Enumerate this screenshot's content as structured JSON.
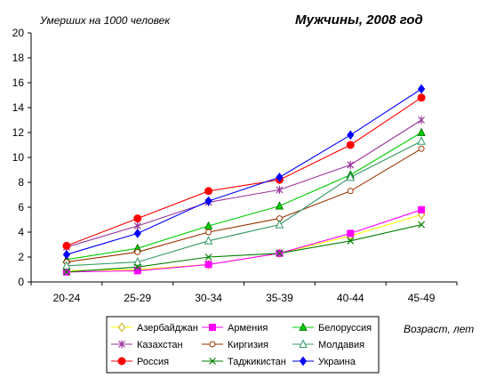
{
  "chart_data": {
    "type": "line",
    "title": "Мужчины, 2008 год",
    "ylabel": "Умерших на 1000 человек",
    "xlabel": "Возраст, лет",
    "ylim": [
      0,
      20
    ],
    "yticks": [
      0,
      2,
      4,
      6,
      8,
      10,
      12,
      14,
      16,
      18,
      20
    ],
    "categories": [
      "20-24",
      "25-29",
      "30-34",
      "35-39",
      "40-44",
      "45-49"
    ],
    "grid": false,
    "legend_position": "bottom",
    "series": [
      {
        "name": "Азербайджан",
        "color": "#ffff00",
        "marker": "diamond-open",
        "values": [
          0.9,
          1.0,
          1.4,
          2.3,
          3.7,
          5.4
        ]
      },
      {
        "name": "Армения",
        "color": "#ff00ff",
        "marker": "square",
        "values": [
          0.8,
          0.9,
          1.4,
          2.3,
          3.9,
          5.8
        ]
      },
      {
        "name": "Белоруссия",
        "color": "#00cc00",
        "marker": "triangle",
        "values": [
          1.8,
          2.7,
          4.5,
          6.1,
          8.6,
          12.0
        ]
      },
      {
        "name": "Казахстан",
        "color": "#993399",
        "marker": "star",
        "values": [
          2.8,
          4.5,
          6.4,
          7.4,
          9.4,
          13.0
        ]
      },
      {
        "name": "Киргизия",
        "color": "#993300",
        "marker": "circle-open",
        "values": [
          1.6,
          2.4,
          4.0,
          5.1,
          7.3,
          10.7
        ]
      },
      {
        "name": "Молдавия",
        "color": "#339966",
        "marker": "triangle-open",
        "values": [
          1.3,
          1.6,
          3.3,
          4.6,
          8.4,
          11.3
        ]
      },
      {
        "name": "Россия",
        "color": "#ff0000",
        "marker": "circle",
        "values": [
          2.9,
          5.1,
          7.3,
          8.2,
          11.0,
          14.8
        ]
      },
      {
        "name": "Таджикистан",
        "color": "#008000",
        "marker": "x",
        "values": [
          0.8,
          1.2,
          2.0,
          2.3,
          3.3,
          4.6
        ]
      },
      {
        "name": "Украина",
        "color": "#0000ff",
        "marker": "diamond",
        "values": [
          2.2,
          3.9,
          6.5,
          8.4,
          11.8,
          15.5
        ]
      }
    ]
  }
}
